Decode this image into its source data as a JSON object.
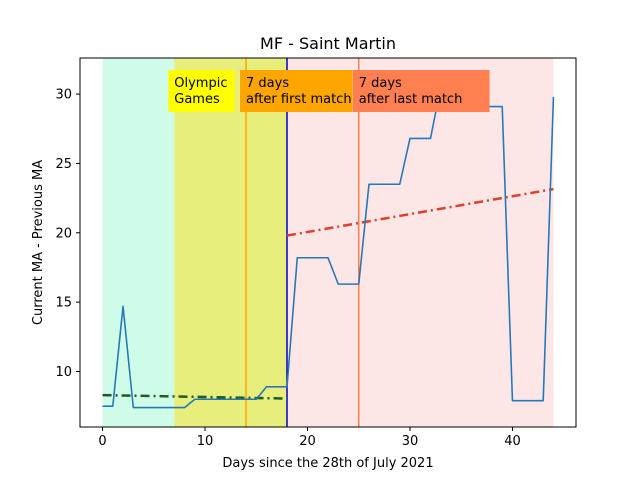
{
  "chart_data": {
    "type": "line",
    "title": "MF - Saint Martin",
    "xlabel": "Days since the 28th of July 2021",
    "ylabel": "Current MA - Previous MA",
    "xlim": [
      -2.2,
      46.2
    ],
    "ylim": [
      6.0,
      32.6
    ],
    "xticks": [
      0,
      10,
      20,
      30,
      40
    ],
    "yticks": [
      10,
      15,
      20,
      25,
      30
    ],
    "grid": false,
    "bands": [
      {
        "x0": 0,
        "x1": 7,
        "color": "#cffbe9"
      },
      {
        "x0": 7,
        "x1": 18,
        "color": "#e7ee7c"
      },
      {
        "x0": 18,
        "x1": 44,
        "color": "#fde6e6"
      }
    ],
    "vlines": [
      {
        "x": 14,
        "color": "#ffa500"
      },
      {
        "x": 18,
        "color": "#0000c8"
      },
      {
        "x": 25,
        "color": "#ff7f50"
      }
    ],
    "annotations": [
      {
        "lines": [
          "Olympic",
          "Games"
        ],
        "x": 7,
        "color": "#ffff00"
      },
      {
        "lines": [
          "7 days",
          "after first match"
        ],
        "x": 14,
        "color": "#ffa500"
      },
      {
        "lines": [
          "7 days",
          "after last match"
        ],
        "x": 25,
        "color": "#ff7f50"
      }
    ],
    "series": [
      {
        "color": "#2878b5",
        "x": [
          0,
          1,
          2,
          3,
          4,
          5,
          6,
          7,
          8,
          9,
          10,
          11,
          12,
          13,
          14,
          15,
          16,
          17,
          18,
          19,
          20,
          21,
          22,
          23,
          24,
          25,
          26,
          27,
          28,
          29,
          30,
          31,
          32,
          33,
          34,
          35,
          36,
          37,
          38,
          39,
          40,
          41,
          42,
          43,
          44
        ],
        "y": [
          7.5,
          7.5,
          14.7,
          7.4,
          7.4,
          7.4,
          7.4,
          7.4,
          7.4,
          8.0,
          8.0,
          8.0,
          8.0,
          8.0,
          8.0,
          8.0,
          8.9,
          8.9,
          8.9,
          18.2,
          18.2,
          18.2,
          18.2,
          16.3,
          16.3,
          16.3,
          23.5,
          23.5,
          23.5,
          23.5,
          26.8,
          26.8,
          26.8,
          30.5,
          30.5,
          30.5,
          29.1,
          29.1,
          29.1,
          29.1,
          7.9,
          7.9,
          7.9,
          7.9,
          29.8
        ]
      }
    ],
    "trendlines": [
      {
        "x": [
          0,
          18
        ],
        "y": [
          8.3,
          8.05
        ],
        "color": "#1a5c2a"
      },
      {
        "x": [
          18,
          44
        ],
        "y": [
          19.8,
          23.15
        ],
        "color": "#e0402a"
      }
    ]
  }
}
